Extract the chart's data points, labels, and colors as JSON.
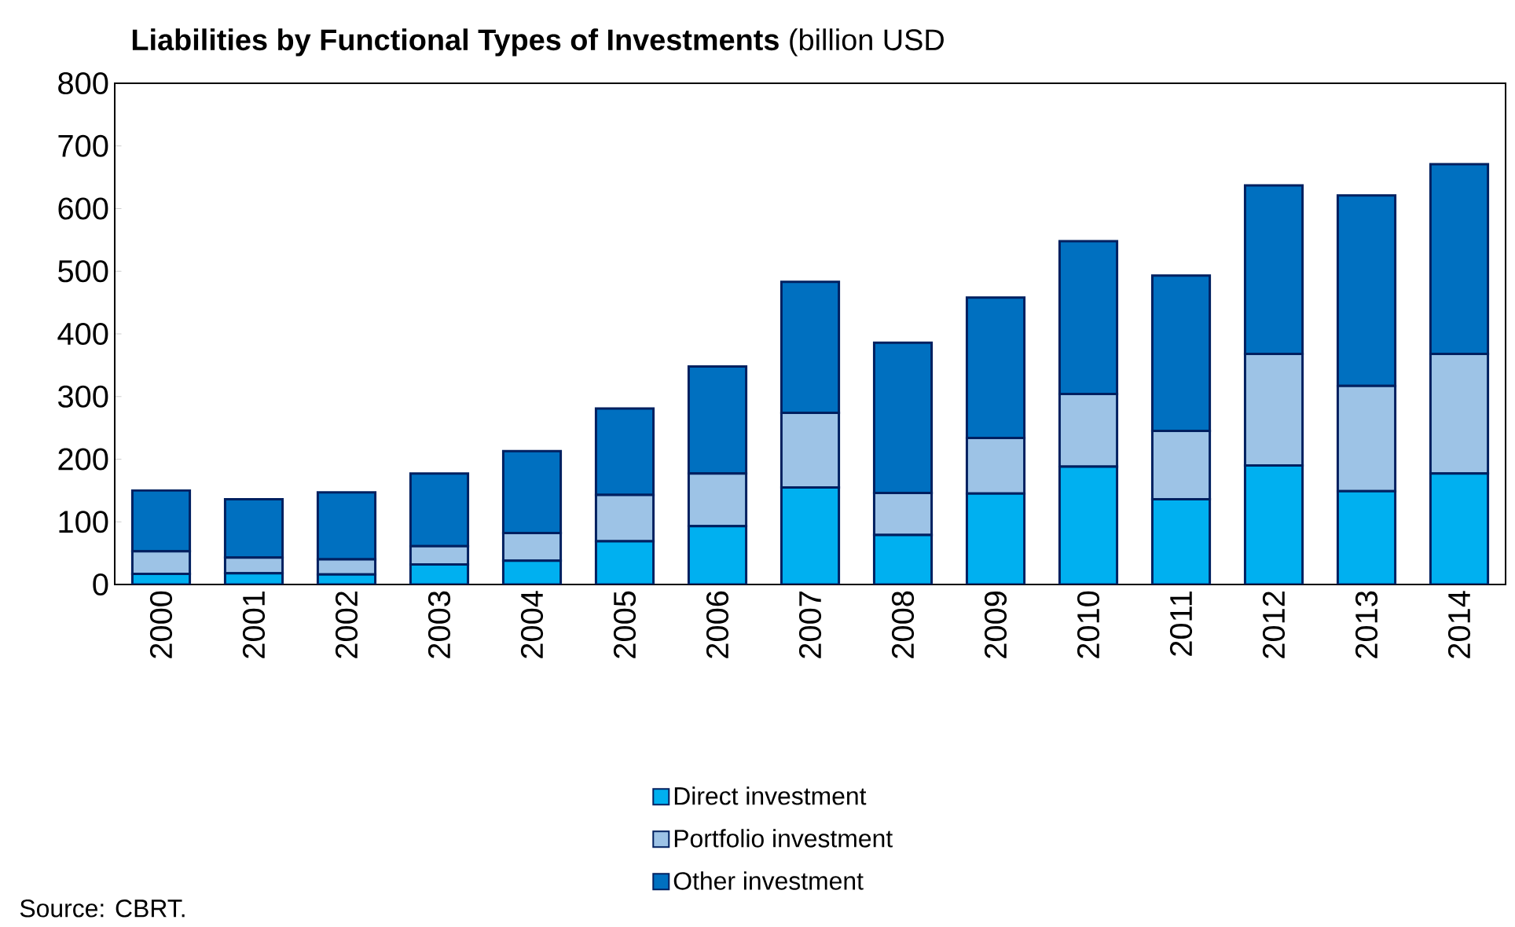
{
  "chart_data": {
    "type": "bar",
    "stacked": true,
    "title": "**Liabilities by Functional Types of Investments** (billion USD",
    "categories": [
      "2000",
      "2001",
      "2002",
      "2003",
      "2004",
      "2005",
      "2006",
      "2007",
      "2008",
      "2009",
      "2010",
      "2011",
      "2012",
      "2013",
      "2014"
    ],
    "series": [
      {
        "name": "Direct investment",
        "color": "#00b0f0",
        "values": [
          17,
          18,
          16,
          32,
          38,
          69,
          93,
          155,
          79,
          145,
          188,
          136,
          190,
          149,
          177
        ]
      },
      {
        "name": "Portfolio investment",
        "color": "#9dc3e6",
        "values": [
          36,
          25,
          24,
          29,
          44,
          74,
          84,
          119,
          67,
          89,
          116,
          109,
          178,
          168,
          191
        ]
      },
      {
        "name": "Other investment",
        "color": "#0070c0",
        "values": [
          97,
          93,
          107,
          116,
          131,
          138,
          171,
          209,
          240,
          224,
          244,
          248,
          269,
          304,
          303
        ]
      }
    ],
    "ylim": [
      0,
      800
    ],
    "yticks": [
      0,
      100,
      200,
      300,
      400,
      500,
      600,
      700,
      800
    ],
    "legend": "bottom",
    "grid": false,
    "annotations": [
      "Source: CBRT."
    ]
  }
}
